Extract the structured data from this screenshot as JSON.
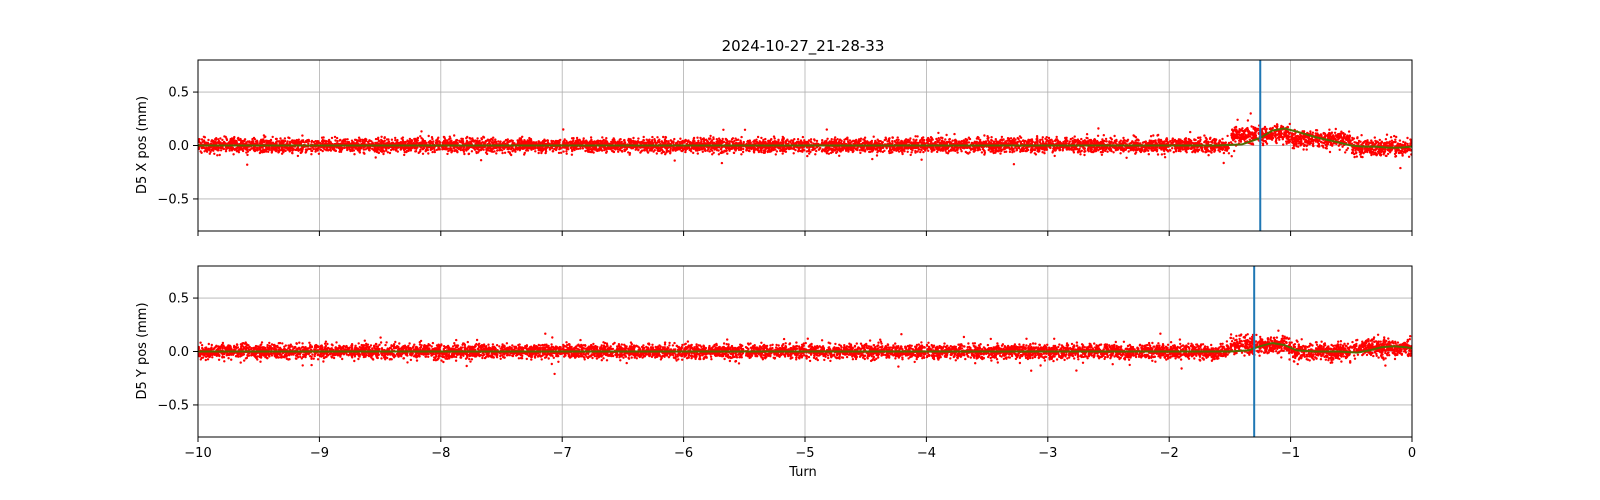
{
  "figure": {
    "title": "2024-10-27_21-28-33",
    "xlabel": "Turn"
  },
  "chart_data": [
    {
      "type": "scatter",
      "panel": "top",
      "ylabel": "D5 X pos (mm)",
      "xlim": [
        -10,
        0
      ],
      "ylim": [
        -0.8,
        0.8
      ],
      "x_ticks": [
        -10,
        -9,
        -8,
        -7,
        -6,
        -5,
        -4,
        -3,
        -2,
        -1,
        0
      ],
      "y_ticks": [
        -0.5,
        0.0,
        0.5
      ],
      "grid": true,
      "point_color": "#ff0000",
      "trend_color": "#556b00",
      "marker_color": "#1f77b4",
      "marker_x": -1.25,
      "noise_amplitude": 0.06,
      "segments": [
        {
          "x": [
            -10.0,
            -9.5
          ],
          "mean": 0.0
        },
        {
          "x": [
            -9.5,
            -9.0
          ],
          "mean": 0.0
        },
        {
          "x": [
            -9.0,
            -8.5
          ],
          "mean": 0.0
        },
        {
          "x": [
            -8.5,
            -8.0
          ],
          "mean": 0.0
        },
        {
          "x": [
            -8.0,
            -7.5
          ],
          "mean": 0.0
        },
        {
          "x": [
            -7.5,
            -7.0
          ],
          "mean": 0.0
        },
        {
          "x": [
            -7.0,
            -6.5
          ],
          "mean": 0.0
        },
        {
          "x": [
            -6.5,
            -6.0
          ],
          "mean": 0.0
        },
        {
          "x": [
            -6.0,
            -5.5
          ],
          "mean": 0.0
        },
        {
          "x": [
            -5.5,
            -5.0
          ],
          "mean": 0.0
        },
        {
          "x": [
            -5.0,
            -4.5
          ],
          "mean": 0.0
        },
        {
          "x": [
            -4.5,
            -4.0
          ],
          "mean": 0.0
        },
        {
          "x": [
            -4.0,
            -3.5
          ],
          "mean": 0.0
        },
        {
          "x": [
            -3.5,
            -3.0
          ],
          "mean": 0.0
        },
        {
          "x": [
            -3.0,
            -2.5
          ],
          "mean": 0.0
        },
        {
          "x": [
            -2.5,
            -2.0
          ],
          "mean": 0.0
        },
        {
          "x": [
            -2.0,
            -1.5
          ],
          "mean": 0.0
        },
        {
          "x": [
            -1.5,
            -1.0
          ],
          "mean": 0.1
        },
        {
          "x": [
            -1.0,
            -0.5
          ],
          "mean": 0.06
        },
        {
          "x": [
            -0.5,
            0.0
          ],
          "mean": -0.02
        }
      ],
      "trend": {
        "x": [
          -10,
          -8,
          -6,
          -4,
          -2,
          -1.6,
          -1.4,
          -1.25,
          -1.15,
          -1.05,
          -0.95,
          -0.8,
          -0.65,
          -0.5,
          -0.4,
          -0.3,
          -0.2,
          -0.1,
          0
        ],
        "y": [
          0,
          0,
          0,
          0,
          0,
          0,
          0.01,
          0.07,
          0.14,
          0.16,
          0.13,
          0.08,
          0.04,
          0.0,
          -0.01,
          -0.01,
          -0.02,
          -0.02,
          -0.01
        ]
      }
    },
    {
      "type": "scatter",
      "panel": "bottom",
      "ylabel": "D5 Y pos (mm)",
      "xlim": [
        -10,
        0
      ],
      "ylim": [
        -0.8,
        0.8
      ],
      "x_ticks": [
        -10,
        -9,
        -8,
        -7,
        -6,
        -5,
        -4,
        -3,
        -2,
        -1,
        0
      ],
      "x_tick_labels": [
        "−10",
        "−9",
        "−8",
        "−7",
        "−6",
        "−5",
        "−4",
        "−3",
        "−2",
        "−1",
        "0"
      ],
      "y_ticks": [
        -0.5,
        0.0,
        0.5
      ],
      "grid": true,
      "point_color": "#ff0000",
      "trend_color": "#556b00",
      "marker_color": "#1f77b4",
      "marker_x": -1.3,
      "noise_amplitude": 0.06,
      "segments": [
        {
          "x": [
            -10.0,
            -9.5
          ],
          "mean": 0.0
        },
        {
          "x": [
            -9.5,
            -9.0
          ],
          "mean": 0.0
        },
        {
          "x": [
            -9.0,
            -8.5
          ],
          "mean": 0.0
        },
        {
          "x": [
            -8.5,
            -8.0
          ],
          "mean": 0.0
        },
        {
          "x": [
            -8.0,
            -7.5
          ],
          "mean": 0.0
        },
        {
          "x": [
            -7.5,
            -7.0
          ],
          "mean": 0.0
        },
        {
          "x": [
            -7.0,
            -6.5
          ],
          "mean": 0.0
        },
        {
          "x": [
            -6.5,
            -6.0
          ],
          "mean": 0.0
        },
        {
          "x": [
            -6.0,
            -5.5
          ],
          "mean": 0.0
        },
        {
          "x": [
            -5.5,
            -5.0
          ],
          "mean": 0.0
        },
        {
          "x": [
            -5.0,
            -4.5
          ],
          "mean": 0.0
        },
        {
          "x": [
            -4.5,
            -4.0
          ],
          "mean": 0.0
        },
        {
          "x": [
            -4.0,
            -3.5
          ],
          "mean": 0.0
        },
        {
          "x": [
            -3.5,
            -3.0
          ],
          "mean": 0.0
        },
        {
          "x": [
            -3.0,
            -2.5
          ],
          "mean": 0.0
        },
        {
          "x": [
            -2.5,
            -2.0
          ],
          "mean": 0.0
        },
        {
          "x": [
            -2.0,
            -1.5
          ],
          "mean": 0.0
        },
        {
          "x": [
            -1.5,
            -1.0
          ],
          "mean": 0.06
        },
        {
          "x": [
            -1.0,
            -0.5
          ],
          "mean": 0.0
        },
        {
          "x": [
            -0.5,
            0.0
          ],
          "mean": 0.03
        }
      ],
      "trend": {
        "x": [
          -10,
          -8,
          -6,
          -4,
          -2,
          -1.5,
          -1.35,
          -1.25,
          -1.15,
          -1.05,
          -0.95,
          -0.8,
          -0.6,
          -0.45,
          -0.35,
          -0.25,
          -0.15,
          -0.05,
          0
        ],
        "y": [
          0,
          0,
          0,
          0,
          0,
          0,
          0.01,
          0.05,
          0.08,
          0.06,
          0.01,
          0.0,
          0.0,
          -0.01,
          0.01,
          0.04,
          0.05,
          0.04,
          0.03
        ]
      }
    }
  ]
}
